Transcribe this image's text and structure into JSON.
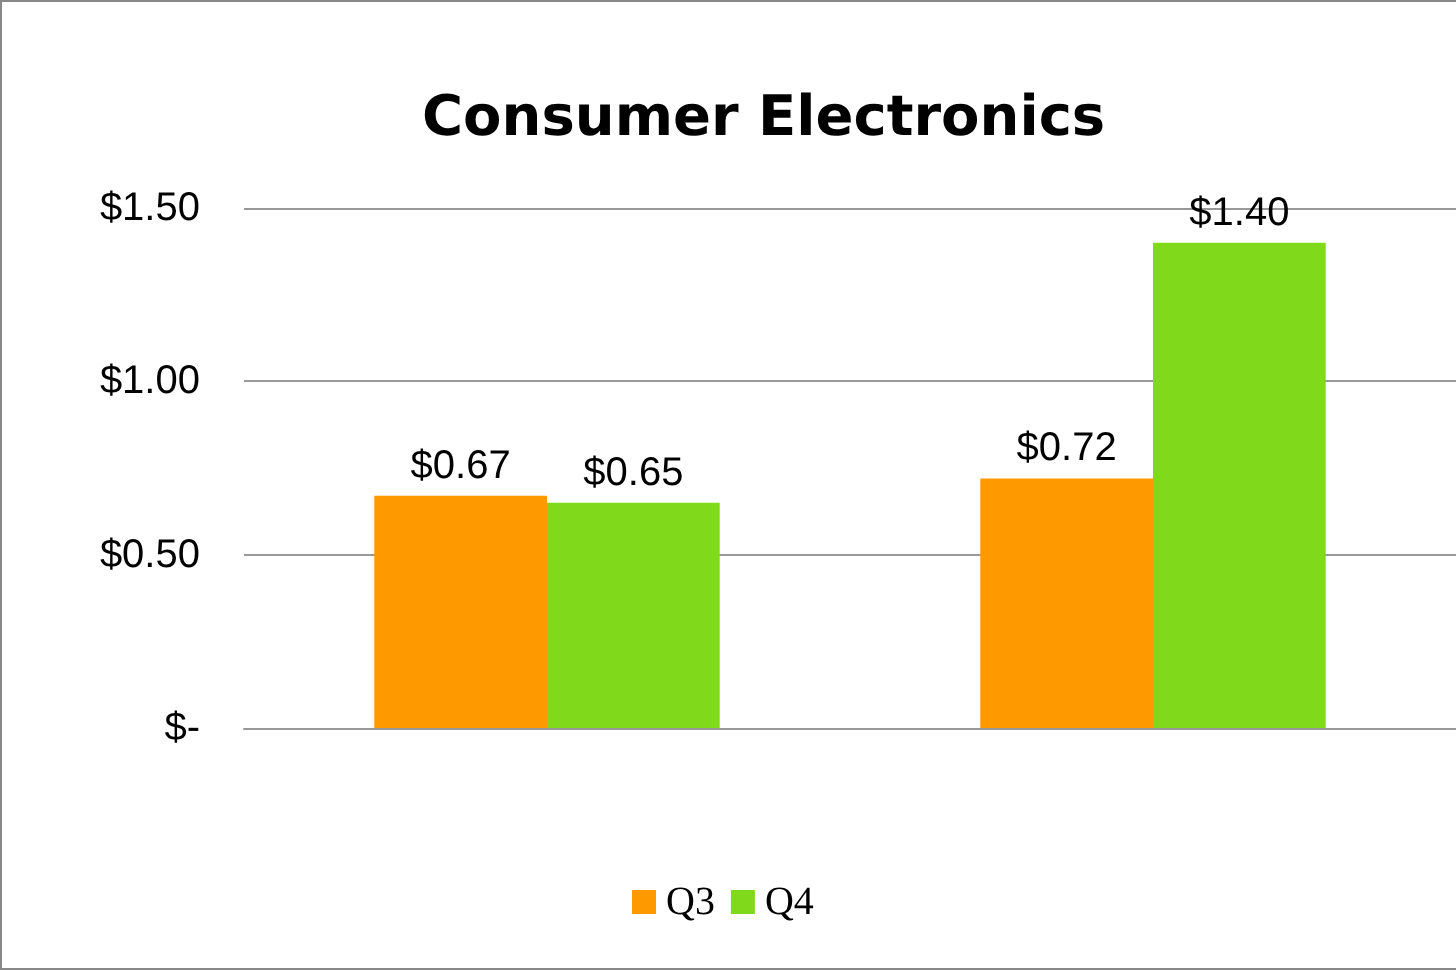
{
  "chart_data": {
    "type": "bar",
    "title": "Consumer Electronics",
    "categories": [
      null,
      null
    ],
    "series": [
      {
        "name": "Q3",
        "color": "#ff9900",
        "values": [
          0.67,
          0.72
        ],
        "value_labels": [
          "$0.67",
          "$0.72"
        ]
      },
      {
        "name": "Q4",
        "color": "#80d91b",
        "values": [
          0.65,
          1.4
        ],
        "value_labels": [
          "$0.65",
          "$1.40"
        ]
      }
    ],
    "ylim": [
      0,
      1.5
    ],
    "yticks": [
      {
        "value": 0,
        "label": "$-"
      },
      {
        "value": 0.5,
        "label": "$0.50"
      },
      {
        "value": 1,
        "label": "$1.00"
      },
      {
        "value": 1.5,
        "label": "$1.50"
      }
    ],
    "grid": "y",
    "legend": "bottom"
  }
}
